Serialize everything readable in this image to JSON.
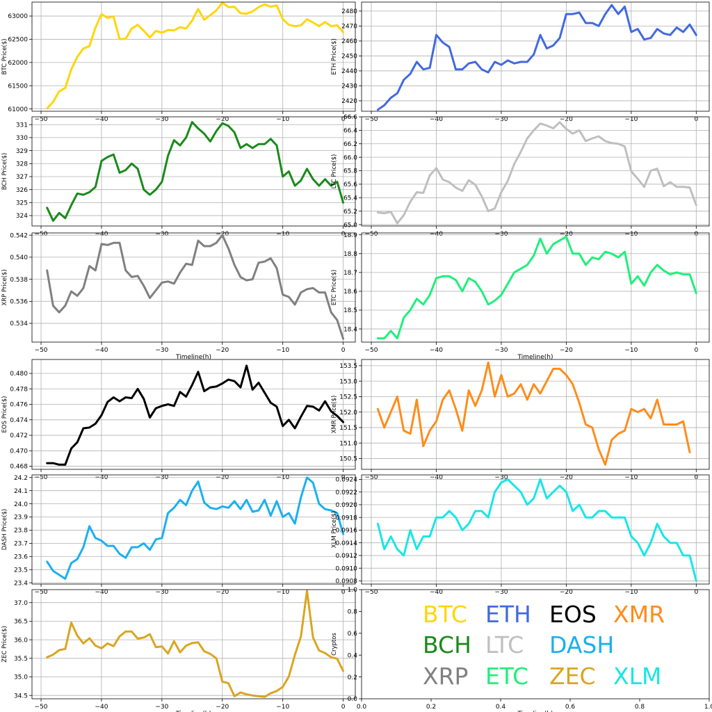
{
  "figure": {
    "grid": true,
    "background": "#ffffff"
  },
  "chart_data": [
    {
      "type": "line",
      "ylabel": "BTC Price($)",
      "xlabel": "",
      "color": "#ffd60a",
      "xlim": [
        -51.5,
        2.0
      ],
      "ylim": [
        60950,
        63300
      ],
      "xticks": [
        -50,
        -40,
        -30,
        -20,
        -10,
        0
      ],
      "yticks": [
        61000,
        61500,
        62000,
        62500,
        63000
      ],
      "x_start": -49,
      "values": [
        61010,
        61150,
        61380,
        61450,
        61850,
        62120,
        62300,
        62350,
        62750,
        63040,
        62960,
        62990,
        62500,
        62510,
        62730,
        62810,
        62680,
        62540,
        62680,
        62640,
        62700,
        62690,
        62760,
        62730,
        62900,
        63150,
        62920,
        63020,
        63120,
        63290,
        63190,
        63200,
        63060,
        63050,
        63100,
        63190,
        63250,
        63200,
        63230,
        62930,
        62810,
        62780,
        62800,
        62930,
        62860,
        62780,
        62870,
        62780,
        62800,
        62650
      ]
    },
    {
      "type": "line",
      "ylabel": "ETH  Price($)",
      "xlabel": "",
      "color": "#4169e1",
      "xlim": [
        -51.5,
        2.0
      ],
      "ylim": [
        2413,
        2486
      ],
      "xticks": [
        -50,
        -40,
        -30,
        -20,
        -10,
        0
      ],
      "yticks": [
        2420,
        2430,
        2440,
        2450,
        2460,
        2470,
        2480
      ],
      "x_start": -49,
      "values": [
        2414,
        2417,
        2422,
        2425,
        2434,
        2438,
        2446,
        2441,
        2442,
        2464,
        2459,
        2456,
        2441,
        2441,
        2445,
        2446,
        2441,
        2439,
        2446,
        2444,
        2447,
        2445,
        2446,
        2446,
        2451,
        2464,
        2455,
        2457,
        2462,
        2478,
        2478,
        2479,
        2472,
        2472,
        2470,
        2478,
        2484,
        2478,
        2483,
        2466,
        2468,
        2461,
        2462,
        2468,
        2465,
        2464,
        2469,
        2466,
        2471,
        2464
      ]
    },
    {
      "type": "line",
      "ylabel": "BCH Price($)",
      "xlabel": "",
      "color": "#1a8a1a",
      "xlim": [
        -51.5,
        2.0
      ],
      "ylim": [
        323.2,
        331.6
      ],
      "xticks": [
        -50,
        -40,
        -30,
        -20,
        -10,
        0
      ],
      "yticks": [
        324,
        325,
        326,
        327,
        328,
        329,
        330,
        331
      ],
      "x_start": -49,
      "values": [
        324.6,
        323.6,
        324.2,
        323.8,
        324.8,
        325.7,
        325.6,
        325.8,
        326.2,
        328.2,
        328.5,
        328.7,
        327.3,
        327.5,
        328.0,
        327.6,
        326.0,
        325.6,
        326.0,
        326.6,
        328.6,
        329.8,
        329.4,
        330.0,
        331.2,
        330.7,
        330.3,
        329.7,
        330.5,
        331.1,
        330.9,
        330.4,
        329.2,
        329.5,
        329.2,
        329.5,
        329.5,
        329.9,
        329.4,
        327.0,
        327.4,
        326.3,
        326.7,
        327.6,
        326.8,
        326.3,
        326.8,
        326.3,
        326.6,
        325.0
      ]
    },
    {
      "type": "line",
      "ylabel": "LTC  Price($)",
      "xlabel": "",
      "color": "#bfbfbf",
      "xlim": [
        -51.5,
        2.0
      ],
      "ylim": [
        64.98,
        66.6
      ],
      "xticks": [
        -50,
        -40,
        -30,
        -20,
        -10,
        0
      ],
      "yticks": [
        65.0,
        65.2,
        65.4,
        65.6,
        65.8,
        66.0,
        66.2,
        66.4,
        66.6
      ],
      "x_start": -49,
      "values": [
        65.18,
        65.17,
        65.19,
        65.02,
        65.14,
        65.34,
        65.48,
        65.47,
        65.73,
        65.84,
        65.67,
        65.63,
        65.55,
        65.5,
        65.66,
        65.59,
        65.42,
        65.2,
        65.24,
        65.48,
        65.65,
        65.9,
        66.08,
        66.28,
        66.4,
        66.5,
        66.47,
        66.43,
        66.52,
        66.42,
        66.35,
        66.4,
        66.24,
        66.28,
        66.31,
        66.24,
        66.21,
        66.2,
        66.16,
        65.79,
        65.68,
        65.56,
        65.8,
        65.83,
        65.57,
        65.63,
        65.56,
        65.56,
        65.55,
        65.29
      ]
    },
    {
      "type": "line",
      "ylabel": "XRP Price($)",
      "xlabel": "Timeline(h)",
      "color": "#808080",
      "xlim": [
        -51.5,
        2.0
      ],
      "ylim": [
        0.5323,
        0.5422
      ],
      "xticks": [
        -50,
        -40,
        -30,
        -20,
        -10,
        0
      ],
      "yticks": [
        0.534,
        0.536,
        0.538,
        0.54,
        0.542
      ],
      "x_start": -49,
      "values": [
        0.5388,
        0.5356,
        0.535,
        0.5356,
        0.5369,
        0.5365,
        0.5372,
        0.5392,
        0.5388,
        0.5412,
        0.5411,
        0.5413,
        0.5413,
        0.5388,
        0.5382,
        0.5383,
        0.5374,
        0.5363,
        0.537,
        0.5377,
        0.5378,
        0.5376,
        0.5386,
        0.5394,
        0.5393,
        0.5415,
        0.541,
        0.541,
        0.5413,
        0.542,
        0.5408,
        0.5393,
        0.5382,
        0.5379,
        0.538,
        0.5395,
        0.5396,
        0.5399,
        0.539,
        0.5366,
        0.5364,
        0.5357,
        0.5368,
        0.5371,
        0.5372,
        0.5368,
        0.5368,
        0.535,
        0.5343,
        0.5326
      ]
    },
    {
      "type": "line",
      "ylabel": "ETC  Price($)",
      "xlabel": "Timeline(h)",
      "color": "#1ef07a",
      "xlim": [
        -51.5,
        2.0
      ],
      "ylim": [
        18.33,
        18.91
      ],
      "xticks": [
        -50,
        -40,
        -30,
        -20,
        -10,
        0
      ],
      "yticks": [
        18.4,
        18.5,
        18.6,
        18.7,
        18.8,
        18.9
      ],
      "x_start": -49,
      "values": [
        18.35,
        18.35,
        18.39,
        18.35,
        18.46,
        18.5,
        18.56,
        18.53,
        18.58,
        18.67,
        18.68,
        18.68,
        18.66,
        18.6,
        18.67,
        18.65,
        18.6,
        18.53,
        18.55,
        18.58,
        18.64,
        18.7,
        18.72,
        18.74,
        18.79,
        18.88,
        18.8,
        18.85,
        18.87,
        18.89,
        18.8,
        18.8,
        18.74,
        18.78,
        18.77,
        18.81,
        18.8,
        18.78,
        18.81,
        18.64,
        18.68,
        18.63,
        18.7,
        18.74,
        18.71,
        18.69,
        18.7,
        18.69,
        18.69,
        18.59
      ]
    },
    {
      "type": "line",
      "ylabel": "EOS  Price($)",
      "xlabel": "",
      "color": "#000000",
      "xlim": [
        -51.5,
        2.0
      ],
      "ylim": [
        0.4676,
        0.4818
      ],
      "xticks": [
        -50,
        -40,
        -30,
        -20,
        -10,
        0
      ],
      "yticks": [
        0.468,
        0.47,
        0.472,
        0.474,
        0.476,
        0.478,
        0.48
      ],
      "x_start": -49,
      "values": [
        0.4684,
        0.4684,
        0.4682,
        0.4682,
        0.4703,
        0.4711,
        0.4729,
        0.473,
        0.4735,
        0.4746,
        0.4763,
        0.4769,
        0.4764,
        0.4769,
        0.4768,
        0.478,
        0.4767,
        0.4743,
        0.4755,
        0.4758,
        0.476,
        0.4758,
        0.4776,
        0.477,
        0.4785,
        0.4802,
        0.4777,
        0.4782,
        0.4783,
        0.4787,
        0.4792,
        0.479,
        0.4782,
        0.481,
        0.4779,
        0.4788,
        0.4775,
        0.4762,
        0.4757,
        0.4732,
        0.474,
        0.4729,
        0.4744,
        0.4758,
        0.4757,
        0.4752,
        0.4764,
        0.4751,
        0.4745,
        0.4737
      ]
    },
    {
      "type": "line",
      "ylabel": "XMR  Price($)",
      "xlabel": "",
      "color": "#ff8c1a",
      "xlim": [
        -51.5,
        2.0
      ],
      "ylim": [
        150.15,
        153.7
      ],
      "xticks": [
        -50,
        -40,
        -30,
        -20,
        -10,
        0
      ],
      "yticks": [
        150.5,
        151.0,
        151.5,
        152.0,
        152.5,
        153.0,
        153.5
      ],
      "x_start": -49,
      "values": [
        152.1,
        151.5,
        152.0,
        152.5,
        151.4,
        151.3,
        152.4,
        150.9,
        151.4,
        151.7,
        152.4,
        152.7,
        152.1,
        151.4,
        152.7,
        152.2,
        152.7,
        153.6,
        152.5,
        153.2,
        152.5,
        152.6,
        152.9,
        152.4,
        152.9,
        152.6,
        153.0,
        153.4,
        153.4,
        153.2,
        152.9,
        152.3,
        151.6,
        151.5,
        150.8,
        150.3,
        151.1,
        151.3,
        151.4,
        152.1,
        152.0,
        152.1,
        151.8,
        152.4,
        151.6,
        151.6,
        151.6,
        151.7,
        150.7
      ]
    },
    {
      "type": "line",
      "ylabel": "DASH  Price($)",
      "xlabel": "",
      "color": "#1ab0f0",
      "xlim": [
        -51.5,
        2.0
      ],
      "ylim": [
        23.39,
        24.22
      ],
      "xticks": [
        -50,
        -40,
        -30,
        -20,
        -10,
        0
      ],
      "yticks": [
        23.4,
        23.5,
        23.6,
        23.7,
        23.8,
        23.9,
        24.0,
        24.1,
        24.2
      ],
      "x_start": -49,
      "values": [
        23.56,
        23.49,
        23.46,
        23.43,
        23.55,
        23.58,
        23.67,
        23.83,
        23.74,
        23.72,
        23.68,
        23.68,
        23.62,
        23.59,
        23.67,
        23.67,
        23.7,
        23.65,
        23.73,
        23.74,
        23.93,
        23.97,
        24.03,
        23.99,
        24.1,
        24.17,
        24.01,
        23.97,
        23.96,
        23.98,
        23.97,
        24.02,
        23.96,
        24.03,
        23.94,
        23.95,
        24.03,
        23.91,
        24.02,
        23.9,
        23.93,
        23.85,
        24.05,
        24.2,
        24.16,
        24.0,
        23.96,
        23.95,
        23.93,
        23.77
      ]
    },
    {
      "type": "line",
      "ylabel": "XLM Price($)",
      "xlabel": "",
      "color": "#19e6e6",
      "xlim": [
        -51.5,
        2.0
      ],
      "ylim": [
        0.09075,
        0.09247
      ],
      "xticks": [
        -50,
        -40,
        -30,
        -20,
        -10,
        0
      ],
      "yticks": [
        0.0908,
        0.091,
        0.0912,
        0.0914,
        0.0916,
        0.0918,
        0.092,
        0.0922,
        0.0924
      ],
      "x_start": -49,
      "values": [
        0.0917,
        0.0913,
        0.0915,
        0.0913,
        0.0912,
        0.0916,
        0.0913,
        0.0915,
        0.0915,
        0.0918,
        0.0918,
        0.0919,
        0.0918,
        0.0916,
        0.0917,
        0.0919,
        0.0919,
        0.0918,
        0.0922,
        0.09235,
        0.0924,
        0.0923,
        0.0922,
        0.092,
        0.0921,
        0.0924,
        0.0921,
        0.0922,
        0.0923,
        0.0922,
        0.0919,
        0.092,
        0.0918,
        0.0918,
        0.0919,
        0.0919,
        0.0918,
        0.0918,
        0.0918,
        0.0915,
        0.0914,
        0.0912,
        0.0914,
        0.0917,
        0.0915,
        0.0914,
        0.0914,
        0.0912,
        0.0912,
        0.0908
      ]
    },
    {
      "type": "line",
      "ylabel": "ZEC Price($)",
      "xlabel": "Timeline(h)",
      "color": "#daa520",
      "xlim": [
        -51.5,
        2.0
      ],
      "ylim": [
        34.41,
        37.35
      ],
      "xticks": [
        -50,
        -40,
        -30,
        -20,
        -10,
        0
      ],
      "yticks": [
        34.5,
        35.0,
        35.5,
        36.0,
        36.5,
        37.0
      ],
      "x_start": -49,
      "values": [
        35.53,
        35.6,
        35.72,
        35.75,
        36.46,
        36.11,
        35.9,
        36.04,
        35.84,
        35.77,
        35.9,
        35.83,
        36.09,
        36.22,
        36.22,
        36.03,
        36.06,
        36.15,
        35.8,
        35.82,
        35.63,
        35.96,
        35.66,
        35.84,
        35.91,
        35.93,
        35.69,
        35.62,
        35.5,
        34.87,
        34.83,
        34.48,
        34.58,
        34.53,
        34.5,
        34.48,
        34.46,
        34.56,
        34.62,
        34.73,
        35.01,
        35.59,
        36.09,
        37.32,
        36.06,
        35.71,
        35.64,
        35.53,
        35.49,
        35.16
      ]
    },
    {
      "type": "table",
      "ylabel": "Cryptos",
      "xlabel": "Timeline(h)",
      "xlim": [
        0.0,
        1.0
      ],
      "ylim": [
        0.0,
        1.0
      ],
      "xticks": [
        0.0,
        0.2,
        0.4,
        0.6,
        0.8,
        1.0
      ],
      "yticks": [
        0.0,
        0.2,
        0.4,
        0.6,
        0.8,
        1.0
      ],
      "legend_rows": [
        [
          {
            "label": "BTC",
            "color": "#ffd60a"
          },
          {
            "label": "ETH",
            "color": "#4169e1"
          },
          {
            "label": "EOS",
            "color": "#000000"
          },
          {
            "label": "XMR",
            "color": "#ff8c1a"
          }
        ],
        [
          {
            "label": "BCH",
            "color": "#1a8a1a"
          },
          {
            "label": "LTC",
            "color": "#bfbfbf"
          },
          {
            "label": "DASH",
            "color": "#1ab0f0"
          }
        ],
        [
          {
            "label": "XRP",
            "color": "#808080"
          },
          {
            "label": "ETC",
            "color": "#1ef07a"
          },
          {
            "label": "ZEC",
            "color": "#daa520"
          },
          {
            "label": "XLM",
            "color": "#19e6e6"
          }
        ]
      ]
    }
  ]
}
